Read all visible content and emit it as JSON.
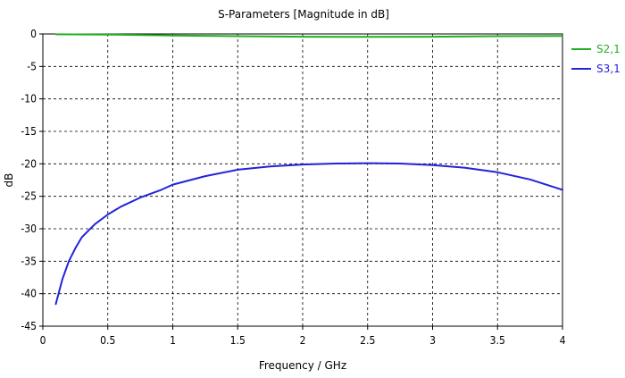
{
  "chart_data": {
    "type": "line",
    "title": "S-Parameters [Magnitude in dB]",
    "xlabel": "Frequency / GHz",
    "ylabel": "dB",
    "xlim": [
      0,
      4
    ],
    "ylim": [
      -45,
      0
    ],
    "xticks": [
      "0",
      "0.5",
      "1",
      "1.5",
      "2",
      "2.5",
      "3",
      "3.5",
      "4"
    ],
    "yticks": [
      "0",
      "-5",
      "-10",
      "-15",
      "-20",
      "-25",
      "-30",
      "-35",
      "-40",
      "-45"
    ],
    "grid": true,
    "legend_position": "right",
    "series": [
      {
        "name": "S2,1",
        "color": "#22b022",
        "x": [
          0.1,
          0.5,
          1.0,
          1.5,
          2.0,
          2.5,
          3.0,
          3.5,
          4.0
        ],
        "y": [
          -0.05,
          -0.1,
          -0.25,
          -0.35,
          -0.42,
          -0.45,
          -0.42,
          -0.35,
          -0.3
        ]
      },
      {
        "name": "S3,1",
        "color": "#2323d8",
        "x": [
          0.1,
          0.15,
          0.2,
          0.25,
          0.3,
          0.4,
          0.5,
          0.6,
          0.75,
          0.9,
          1.0,
          1.25,
          1.5,
          1.75,
          2.0,
          2.25,
          2.5,
          2.75,
          3.0,
          3.25,
          3.5,
          3.75,
          4.0
        ],
        "y": [
          -41.6,
          -37.8,
          -35.0,
          -33.0,
          -31.3,
          -29.3,
          -27.8,
          -26.6,
          -25.2,
          -24.1,
          -23.2,
          -21.9,
          -20.9,
          -20.4,
          -20.1,
          -19.95,
          -19.9,
          -19.95,
          -20.2,
          -20.6,
          -21.3,
          -22.4,
          -24.0
        ]
      }
    ]
  }
}
